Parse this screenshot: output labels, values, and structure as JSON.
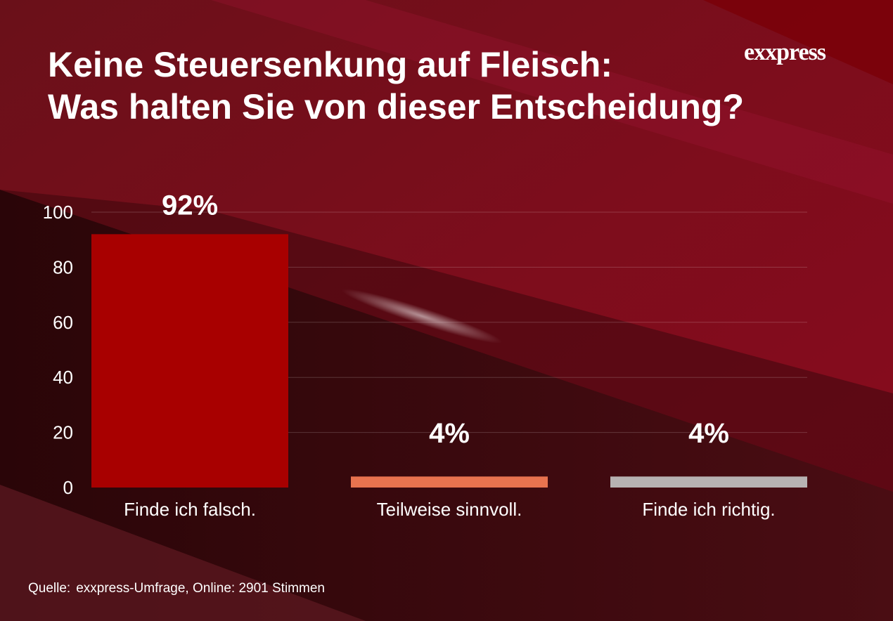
{
  "page": {
    "title_line1": "Keine Steuersenkung auf Fleisch:",
    "title_line2": "Was halten Sie von dieser Entscheidung?",
    "logo": "exxpress",
    "source_label": "Quelle:",
    "source_text": "exxpress-Umfrage, Online: 2901 Stimmen"
  },
  "chart_data": {
    "type": "bar",
    "title": "Keine Steuersenkung auf Fleisch: Was halten Sie von dieser Entscheidung?",
    "categories": [
      "Finde ich falsch.",
      "Teilweise sinnvoll.",
      "Finde ich richtig."
    ],
    "values": [
      92,
      4,
      4
    ],
    "data_labels": [
      "92%",
      "4%",
      "4%"
    ],
    "colors": [
      "#a80000",
      "#e8734f",
      "#b7b2b2"
    ],
    "ylim": [
      0,
      100
    ],
    "yticks": [
      0,
      20,
      40,
      60,
      80,
      100
    ],
    "grid": true,
    "xlabel": "",
    "ylabel": ""
  }
}
